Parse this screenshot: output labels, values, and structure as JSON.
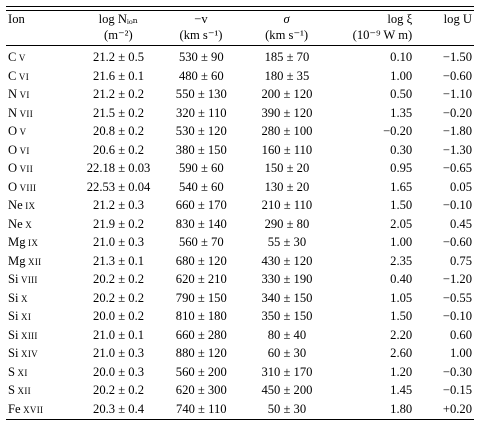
{
  "table": {
    "headers": [
      {
        "line1": "Ion",
        "line2": ""
      },
      {
        "line1": "log Nᵢₒₙ",
        "line2": "(m⁻²)"
      },
      {
        "line1": "−v",
        "line2": "(km s⁻¹)"
      },
      {
        "line1": "σ",
        "line2": "(km s⁻¹)"
      },
      {
        "line1": "log ξ",
        "line2": "(10⁻⁹ W m)"
      },
      {
        "line1": "log U",
        "line2": ""
      }
    ],
    "rows": [
      {
        "ion": "C v",
        "logN": "21.2 ± 0.5",
        "v": "530 ± 90",
        "sigma": "185  ±  70",
        "logxi": "0.10",
        "logU": "−1.50"
      },
      {
        "ion": "C vi",
        "logN": "21.6 ± 0.1",
        "v": "480 ± 60",
        "sigma": "180  ±  35",
        "logxi": "1.00",
        "logU": "−0.60"
      },
      {
        "ion": "N vi",
        "logN": "21.2 ± 0.2",
        "v": "550 ± 130",
        "sigma": "200  ±  120",
        "logxi": "0.50",
        "logU": "−1.10"
      },
      {
        "ion": "N vii",
        "logN": "21.5 ± 0.2",
        "v": "320 ± 110",
        "sigma": "390  ±  120",
        "logxi": "1.35",
        "logU": "−0.20"
      },
      {
        "ion": "O v",
        "logN": "20.8 ± 0.2",
        "v": "530 ± 120",
        "sigma": "280  ±  100",
        "logxi": "−0.20",
        "logU": "−1.80"
      },
      {
        "ion": "O vi",
        "logN": "20.6 ± 0.2",
        "v": "380 ± 150",
        "sigma": "160  ±  110",
        "logxi": "0.30",
        "logU": "−1.30"
      },
      {
        "ion": "O vii",
        "logN": "22.18 ± 0.03",
        "v": "590 ± 60",
        "sigma": "150  ±  20",
        "logxi": "0.95",
        "logU": "−0.65"
      },
      {
        "ion": "O viii",
        "logN": "22.53 ± 0.04",
        "v": "540 ± 60",
        "sigma": "130  ±  20",
        "logxi": "1.65",
        "logU": "0.05"
      },
      {
        "ion": "Ne ix",
        "logN": "21.2 ± 0.3",
        "v": "660 ± 170",
        "sigma": "210  ±  110",
        "logxi": "1.50",
        "logU": "−0.10"
      },
      {
        "ion": "Ne x",
        "logN": "21.9 ± 0.2",
        "v": "830 ± 140",
        "sigma": "290  ±  80",
        "logxi": "2.05",
        "logU": "0.45"
      },
      {
        "ion": "Mg ix",
        "logN": "21.0 ± 0.3",
        "v": "560 ± 70",
        "sigma": "55  ±  30",
        "logxi": "1.00",
        "logU": "−0.60"
      },
      {
        "ion": "Mg xii",
        "logN": "21.3 ± 0.1",
        "v": "680 ± 120",
        "sigma": "430  ±  120",
        "logxi": "2.35",
        "logU": "0.75"
      },
      {
        "ion": "Si viii",
        "logN": "20.2 ± 0.2",
        "v": "620 ± 210",
        "sigma": "330  ±  190",
        "logxi": "0.40",
        "logU": "−1.20"
      },
      {
        "ion": "Si x",
        "logN": "20.2 ± 0.2",
        "v": "790 ± 150",
        "sigma": "340  ±  150",
        "logxi": "1.05",
        "logU": "−0.55"
      },
      {
        "ion": "Si xi",
        "logN": "20.0 ± 0.2",
        "v": "810 ± 180",
        "sigma": "350  ±  150",
        "logxi": "1.50",
        "logU": "−0.10"
      },
      {
        "ion": "Si xiii",
        "logN": "21.0 ± 0.1",
        "v": "660 ± 280",
        "sigma": "80  ±  40",
        "logxi": "2.20",
        "logU": "0.60"
      },
      {
        "ion": "Si xiv",
        "logN": "21.0 ± 0.3",
        "v": "880 ± 120",
        "sigma": "60  ±  30",
        "logxi": "2.60",
        "logU": "1.00"
      },
      {
        "ion": "S xi",
        "logN": "20.0 ± 0.3",
        "v": "560 ± 200",
        "sigma": "310  ±  170",
        "logxi": "1.20",
        "logU": "−0.30"
      },
      {
        "ion": "S xii",
        "logN": "20.2 ± 0.2",
        "v": "620 ± 300",
        "sigma": "450  ±  200",
        "logxi": "1.45",
        "logU": "−0.15"
      },
      {
        "ion": "Fe xvii",
        "logN": "20.3 ± 0.4",
        "v": "740 ± 110",
        "sigma": "50  ±  30",
        "logxi": "1.80",
        "logU": "+0.20"
      }
    ]
  }
}
